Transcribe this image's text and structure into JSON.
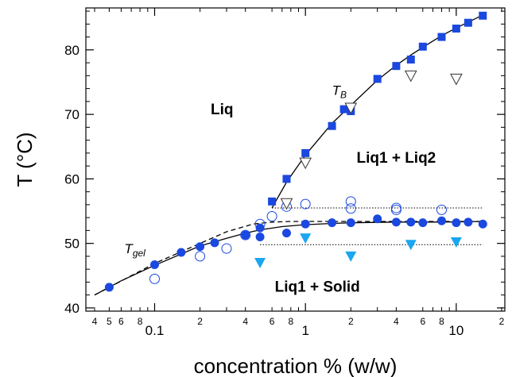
{
  "chart_data": {
    "type": "scatter",
    "xscale": "log",
    "xlim": [
      0.035,
      21
    ],
    "ylim": [
      39.5,
      86.5
    ],
    "xlabel": "concentration % (w/w)",
    "ylabel": "T (°C)",
    "x_major_ticks": [
      0.1,
      1,
      10
    ],
    "x_major_labels": [
      "0.1",
      "1",
      "10"
    ],
    "x_minor_ticks": [
      0.04,
      0.05,
      0.06,
      0.08,
      0.2,
      0.4,
      0.6,
      0.8,
      2,
      4,
      6,
      8,
      20
    ],
    "x_minor_labels": [
      "4",
      "5",
      "6",
      "8",
      "2",
      "4",
      "6",
      "8",
      "2",
      "4",
      "6",
      "8",
      "2"
    ],
    "y_ticks": [
      40,
      50,
      60,
      70,
      80
    ],
    "y_labels": [
      "40",
      "50",
      "60",
      "70",
      "80"
    ],
    "regions": [
      {
        "label": "Liq",
        "x": 0.28,
        "y": 70
      },
      {
        "label": "Liq1 + Liq2",
        "x": 4.0,
        "y": 62.5
      },
      {
        "label": "Liq1 + Solid",
        "x": 1.2,
        "y": 42.5
      }
    ],
    "annotations": [
      {
        "main": "T",
        "sub": "B",
        "x": 1.5,
        "y": 73
      },
      {
        "main": "T",
        "sub": "gel",
        "x": 0.063,
        "y": 48.5
      }
    ],
    "colors": {
      "blue_square": "#1a48e0",
      "blue_circle": "#1a48e0",
      "cyan_triangle": "#1aa6f0",
      "line": "#000000"
    },
    "series": [
      {
        "marker": "filled-square",
        "x": [
          0.6,
          0.75,
          1.0,
          1.5,
          1.8,
          2.0,
          3.0,
          4.0,
          5.0,
          6.0,
          8.0,
          10.0,
          12.0,
          15.0
        ],
        "y": [
          56.5,
          60.0,
          64.0,
          68.2,
          70.8,
          70.5,
          75.5,
          77.5,
          78.5,
          80.5,
          82.0,
          83.3,
          84.2,
          85.3
        ]
      },
      {
        "marker": "filled-circle",
        "x": [
          0.05,
          0.1,
          0.15,
          0.2,
          0.25,
          0.4,
          0.5,
          0.5,
          0.75,
          1.0,
          1.5,
          2.0,
          3.0,
          4.0,
          5.0,
          6.0,
          8.0,
          10.0,
          12.0,
          15.0
        ],
        "y": [
          43.2,
          46.7,
          48.6,
          49.5,
          50.1,
          51.3,
          52.4,
          51.0,
          51.6,
          53.0,
          53.2,
          53.2,
          53.8,
          53.3,
          53.3,
          53.2,
          53.5,
          53.2,
          53.3,
          53.0
        ],
        "x_extra": [],
        "y_extra": []
      },
      {
        "marker": "open-circle",
        "x": [
          0.1,
          0.2,
          0.3,
          0.4,
          0.5,
          0.6,
          0.75,
          1.0,
          2.0,
          2.0,
          4.0,
          4.0,
          8.0
        ],
        "y": [
          44.5,
          48.0,
          49.2,
          51.3,
          53.0,
          54.2,
          55.7,
          56.1,
          56.5,
          55.4,
          55.5,
          55.2,
          55.2
        ]
      },
      {
        "marker": "open-triangle-down",
        "x": [
          0.75,
          1.0,
          2.0,
          5.0,
          10.0
        ],
        "y": [
          56.2,
          62.5,
          71.0,
          76.0,
          75.5
        ]
      },
      {
        "marker": "filled-triangle-down",
        "x": [
          0.5,
          1.0,
          2.0,
          5.0,
          10.0
        ],
        "y": [
          47.0,
          50.8,
          48.0,
          49.8,
          50.2
        ]
      }
    ],
    "curves": [
      {
        "style": "solid",
        "x": [
          0.6,
          0.75,
          1.0,
          1.5,
          2.0,
          3.0,
          4.0,
          5.0,
          6.0,
          8.0,
          10.0,
          12.0,
          15.0
        ],
        "y": [
          55.5,
          59.5,
          63.7,
          68.6,
          71.4,
          75.3,
          77.6,
          79.2,
          80.4,
          82.2,
          83.4,
          84.3,
          85.4
        ]
      },
      {
        "style": "solid",
        "x": [
          0.04,
          0.06,
          0.1,
          0.2,
          0.3,
          0.4,
          0.5,
          0.7,
          1.0,
          1.5,
          2.0,
          4.0,
          8.0,
          15.0
        ],
        "y": [
          42.0,
          44.2,
          46.6,
          49.6,
          50.8,
          51.6,
          52.1,
          52.6,
          52.9,
          53.1,
          53.2,
          53.3,
          53.3,
          53.4
        ]
      },
      {
        "style": "dashed",
        "x": [
          0.04,
          0.1,
          0.2,
          0.3,
          0.45,
          0.6,
          0.8,
          1.0,
          2.0,
          5.0,
          15.0
        ],
        "y": [
          42.0,
          46.9,
          50.0,
          51.8,
          53.0,
          53.3,
          53.4,
          53.4,
          53.4,
          53.4,
          53.4
        ]
      },
      {
        "style": "dotted",
        "x": [
          0.6,
          15.0
        ],
        "y": [
          55.5,
          55.5
        ]
      },
      {
        "style": "dotted",
        "x": [
          0.5,
          15.0
        ],
        "y": [
          49.8,
          49.8
        ]
      }
    ]
  }
}
